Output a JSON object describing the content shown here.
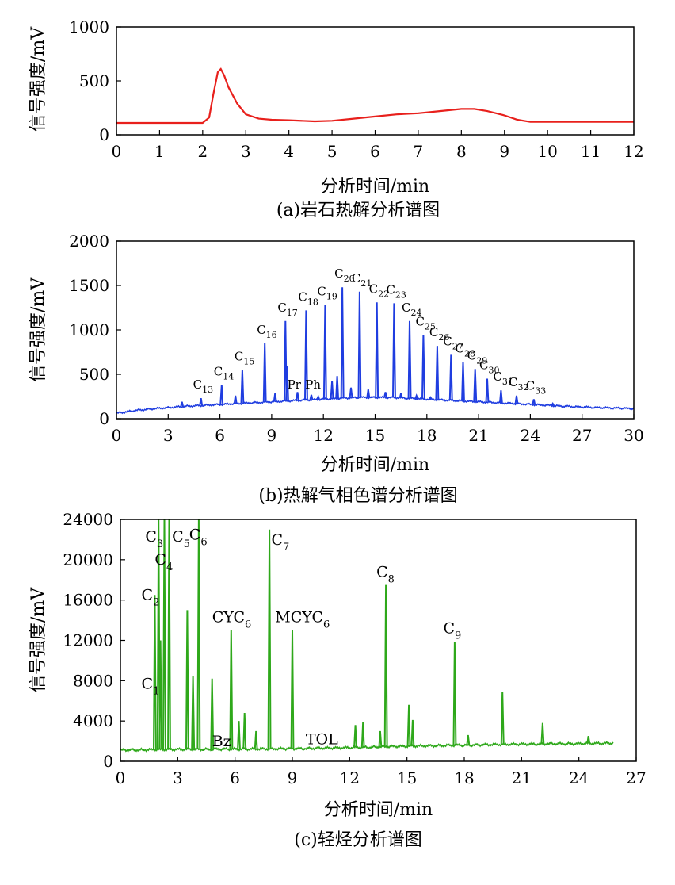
{
  "chart_data": [
    {
      "type": "line",
      "caption": "(a)岩石热解分析谱图",
      "xlabel": "分析时间/min",
      "ylabel": "信号强度/mV",
      "xlim": [
        0,
        12
      ],
      "ylim": [
        0,
        1000
      ],
      "xticks": [
        0,
        1,
        2,
        3,
        4,
        5,
        6,
        7,
        8,
        9,
        10,
        11,
        12
      ],
      "yticks": [
        0,
        500,
        1000
      ],
      "color": "#e8201c",
      "series": [
        {
          "x": [
            0,
            1,
            2,
            2.15,
            2.25,
            2.35,
            2.42,
            2.5,
            2.6,
            2.8,
            3.0,
            3.3,
            3.6,
            4.0,
            4.6,
            5.0,
            5.5,
            6.0,
            6.5,
            7.0,
            7.5,
            8.0,
            8.3,
            8.6,
            9.0,
            9.3,
            9.6,
            10,
            11,
            12
          ],
          "y": [
            110,
            110,
            110,
            160,
            380,
            580,
            610,
            550,
            440,
            290,
            190,
            150,
            140,
            135,
            125,
            130,
            150,
            170,
            190,
            200,
            220,
            240,
            240,
            220,
            180,
            140,
            120,
            120,
            120,
            120
          ]
        }
      ]
    },
    {
      "type": "line",
      "caption": "(b)热解气相色谱分析谱图",
      "xlabel": "分析时间/min",
      "ylabel": "信号强度/mV",
      "xlim": [
        0,
        30
      ],
      "ylim": [
        0,
        2000
      ],
      "xticks": [
        0,
        3,
        6,
        9,
        12,
        15,
        18,
        21,
        24,
        27,
        30
      ],
      "yticks": [
        0,
        500,
        1000,
        1500,
        2000
      ],
      "color": "#1f3de0",
      "baseline": {
        "x": [
          0,
          1,
          2,
          4,
          6,
          8,
          10,
          12,
          14,
          16,
          18,
          20,
          22,
          24,
          26,
          28,
          30
        ],
        "y": [
          60,
          90,
          110,
          140,
          160,
          180,
          200,
          220,
          240,
          240,
          220,
          200,
          180,
          160,
          140,
          125,
          115
        ]
      },
      "peaks": [
        {
          "label": "C",
          "sub": "13",
          "x": 4.9,
          "y": 230
        },
        {
          "label": "C",
          "sub": "14",
          "x": 6.1,
          "y": 380
        },
        {
          "label": "C",
          "sub": "15",
          "x": 7.3,
          "y": 550
        },
        {
          "label": "C",
          "sub": "16",
          "x": 8.6,
          "y": 850
        },
        {
          "label": "C",
          "sub": "17",
          "x": 9.8,
          "y": 1100
        },
        {
          "label": "C",
          "sub": "18",
          "x": 11.0,
          "y": 1220
        },
        {
          "label": "C",
          "sub": "19",
          "x": 12.1,
          "y": 1280
        },
        {
          "label": "C",
          "sub": "20",
          "x": 13.1,
          "y": 1480
        },
        {
          "label": "C",
          "sub": "21",
          "x": 14.1,
          "y": 1430
        },
        {
          "label": "C",
          "sub": "22",
          "x": 15.1,
          "y": 1310
        },
        {
          "label": "C",
          "sub": "23",
          "x": 16.1,
          "y": 1300
        },
        {
          "label": "C",
          "sub": "24",
          "x": 17.0,
          "y": 1100
        },
        {
          "label": "C",
          "sub": "25",
          "x": 17.8,
          "y": 940
        },
        {
          "label": "C",
          "sub": "26",
          "x": 18.6,
          "y": 820
        },
        {
          "label": "C",
          "sub": "27",
          "x": 19.4,
          "y": 720
        },
        {
          "label": "C",
          "sub": "28",
          "x": 20.1,
          "y": 640
        },
        {
          "label": "C",
          "sub": "29",
          "x": 20.8,
          "y": 560
        },
        {
          "label": "C",
          "sub": "30",
          "x": 21.5,
          "y": 450
        },
        {
          "label": "C",
          "sub": "31",
          "x": 22.3,
          "y": 320
        },
        {
          "label": "C",
          "sub": "32",
          "x": 23.2,
          "y": 260
        },
        {
          "label": "C",
          "sub": "33",
          "x": 24.2,
          "y": 220
        }
      ],
      "minor_peaks": [
        {
          "x": 3.8,
          "y": 190
        },
        {
          "x": 6.9,
          "y": 260
        },
        {
          "x": 9.2,
          "y": 290
        },
        {
          "x": 9.9,
          "y": 590
        },
        {
          "x": 10.5,
          "y": 300
        },
        {
          "x": 11.3,
          "y": 270
        },
        {
          "x": 11.7,
          "y": 250
        },
        {
          "x": 12.5,
          "y": 420
        },
        {
          "x": 12.8,
          "y": 480
        },
        {
          "x": 13.6,
          "y": 350
        },
        {
          "x": 14.6,
          "y": 330
        },
        {
          "x": 15.6,
          "y": 300
        },
        {
          "x": 16.5,
          "y": 290
        },
        {
          "x": 17.4,
          "y": 260
        },
        {
          "x": 18.2,
          "y": 240
        },
        {
          "x": 19.0,
          "y": 210
        },
        {
          "x": 19.8,
          "y": 200
        },
        {
          "x": 25.3,
          "y": 170
        }
      ],
      "annotations": [
        {
          "text": "Pr",
          "x": 10.3,
          "y": 340
        },
        {
          "text": "Ph",
          "x": 11.4,
          "y": 340
        }
      ]
    },
    {
      "type": "line",
      "caption": "(c)轻烃分析谱图",
      "xlabel": "分析时间/min",
      "ylabel": "信号强度/mV",
      "xlim": [
        0,
        27
      ],
      "ylim": [
        0,
        24000
      ],
      "xticks": [
        0,
        3,
        6,
        9,
        12,
        15,
        18,
        21,
        24,
        27
      ],
      "yticks": [
        0,
        4000,
        8000,
        12000,
        16000,
        20000,
        24000
      ],
      "color": "#2ea81a",
      "baseline": {
        "x": [
          0,
          1.5,
          3,
          6,
          9,
          12,
          15,
          18,
          21,
          24,
          25.8
        ],
        "y": [
          1100,
          1150,
          1180,
          1200,
          1250,
          1350,
          1500,
          1600,
          1700,
          1750,
          1800
        ]
      },
      "peaks": [
        {
          "x": 1.8,
          "y": 16500
        },
        {
          "x": 2.0,
          "y": 24000
        },
        {
          "x": 2.1,
          "y": 12000
        },
        {
          "x": 2.3,
          "y": 24000
        },
        {
          "x": 2.55,
          "y": 24000
        },
        {
          "x": 3.5,
          "y": 15000
        },
        {
          "x": 3.8,
          "y": 8500
        },
        {
          "x": 4.1,
          "y": 24000
        },
        {
          "x": 4.8,
          "y": 8200
        },
        {
          "x": 5.8,
          "y": 13000
        },
        {
          "x": 6.2,
          "y": 4000
        },
        {
          "x": 6.5,
          "y": 4800
        },
        {
          "x": 7.1,
          "y": 3000
        },
        {
          "x": 7.8,
          "y": 23000
        },
        {
          "x": 9.0,
          "y": 13000
        },
        {
          "x": 12.3,
          "y": 3600
        },
        {
          "x": 12.7,
          "y": 3900
        },
        {
          "x": 13.6,
          "y": 3000
        },
        {
          "x": 13.9,
          "y": 17500
        },
        {
          "x": 15.1,
          "y": 5600
        },
        {
          "x": 15.3,
          "y": 4100
        },
        {
          "x": 17.5,
          "y": 11800
        },
        {
          "x": 18.2,
          "y": 2600
        },
        {
          "x": 20.0,
          "y": 6900
        },
        {
          "x": 22.1,
          "y": 3800
        },
        {
          "x": 24.5,
          "y": 2500
        }
      ],
      "labels": [
        {
          "text": "C",
          "sub": "1",
          "x": 1.1,
          "y": 7200
        },
        {
          "text": "C",
          "sub": "2",
          "x": 1.1,
          "y": 16000
        },
        {
          "text": "C",
          "sub": "3",
          "x": 1.3,
          "y": 21800
        },
        {
          "text": "C",
          "sub": "4",
          "x": 1.8,
          "y": 19500
        },
        {
          "text": "C",
          "sub": "5",
          "x": 2.7,
          "y": 21800
        },
        {
          "text": "C",
          "sub": "6",
          "x": 3.6,
          "y": 22000
        },
        {
          "text": "C",
          "sub": "7",
          "x": 7.9,
          "y": 21500
        },
        {
          "text": "C",
          "sub": "8",
          "x": 13.4,
          "y": 18300
        },
        {
          "text": "C",
          "sub": "9",
          "x": 16.9,
          "y": 12700
        },
        {
          "text": "CYC",
          "sub": "6",
          "x": 4.8,
          "y": 13800
        },
        {
          "text": "MCYC",
          "sub": "6",
          "x": 8.1,
          "y": 13800
        },
        {
          "text": "Bz",
          "x": 4.8,
          "y": 1500
        },
        {
          "text": "TOL",
          "x": 9.7,
          "y": 1700
        }
      ]
    }
  ]
}
